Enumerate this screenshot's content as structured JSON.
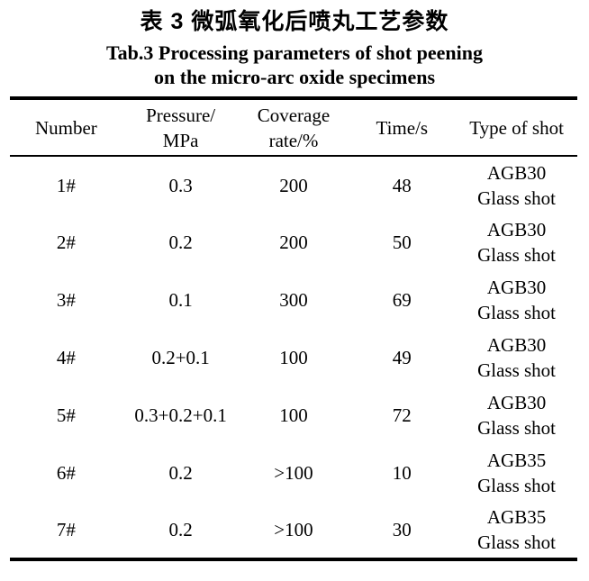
{
  "caption": {
    "chinese": "表 3 微弧氧化后喷丸工艺参数",
    "english_line1": "Tab.3 Processing parameters of shot peening",
    "english_line2": "on the micro-arc oxide specimens"
  },
  "table": {
    "headers": [
      {
        "line1": "Number",
        "line2": ""
      },
      {
        "line1": "Pressure/",
        "line2": "MPa"
      },
      {
        "line1": "Coverage",
        "line2": "rate/%"
      },
      {
        "line1": "Time/s",
        "line2": ""
      },
      {
        "line1": "Type of shot",
        "line2": ""
      }
    ],
    "rows": [
      {
        "number": "1#",
        "pressure": "0.3",
        "coverage": "200",
        "time": "48",
        "shot1": "AGB30",
        "shot2": "Glass shot"
      },
      {
        "number": "2#",
        "pressure": "0.2",
        "coverage": "200",
        "time": "50",
        "shot1": "AGB30",
        "shot2": "Glass shot"
      },
      {
        "number": "3#",
        "pressure": "0.1",
        "coverage": "300",
        "time": "69",
        "shot1": "AGB30",
        "shot2": "Glass shot"
      },
      {
        "number": "4#",
        "pressure": "0.2+0.1",
        "coverage": "100",
        "time": "49",
        "shot1": "AGB30",
        "shot2": "Glass shot"
      },
      {
        "number": "5#",
        "pressure": "0.3+0.2+0.1",
        "coverage": "100",
        "time": "72",
        "shot1": "AGB30",
        "shot2": "Glass shot"
      },
      {
        "number": "6#",
        "pressure": "0.2",
        "coverage": ">100",
        "time": "10",
        "shot1": "AGB35",
        "shot2": "Glass shot"
      },
      {
        "number": "7#",
        "pressure": "0.2",
        "coverage": ">100",
        "time": "30",
        "shot1": "AGB35",
        "shot2": "Glass shot"
      }
    ]
  },
  "colors": {
    "text": "#000000",
    "background": "#ffffff",
    "rule": "#000000"
  }
}
